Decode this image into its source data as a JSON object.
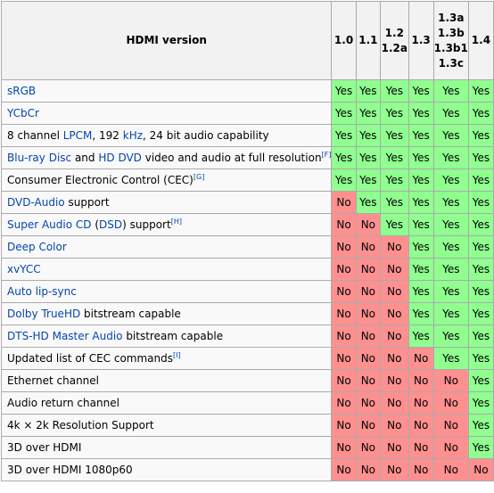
{
  "table": {
    "header_title": "HDMI version",
    "versions": [
      [
        "1.0"
      ],
      [
        "1.1"
      ],
      [
        "1.2",
        "1.2a"
      ],
      [
        "1.3"
      ],
      [
        "1.3a",
        "1.3b",
        "1.3b1",
        "1.3c"
      ],
      [
        "1.4"
      ]
    ],
    "rows": [
      {
        "parts": [
          {
            "t": "sRGB",
            "link": true
          }
        ],
        "values": [
          "Yes",
          "Yes",
          "Yes",
          "Yes",
          "Yes",
          "Yes"
        ]
      },
      {
        "parts": [
          {
            "t": "YCbCr",
            "link": true
          }
        ],
        "values": [
          "Yes",
          "Yes",
          "Yes",
          "Yes",
          "Yes",
          "Yes"
        ]
      },
      {
        "parts": [
          {
            "t": "8 channel ",
            "link": false
          },
          {
            "t": "LPCM",
            "link": true
          },
          {
            "t": ", 192 ",
            "link": false
          },
          {
            "t": "kHz",
            "link": true
          },
          {
            "t": ", 24 bit audio capability",
            "link": false
          }
        ],
        "values": [
          "Yes",
          "Yes",
          "Yes",
          "Yes",
          "Yes",
          "Yes"
        ]
      },
      {
        "parts": [
          {
            "t": "Blu-ray Disc",
            "link": true
          },
          {
            "t": " and ",
            "link": false
          },
          {
            "t": "HD DVD",
            "link": true
          },
          {
            "t": " video and audio at full resolution",
            "link": false
          }
        ],
        "note": "[F]",
        "values": [
          "Yes",
          "Yes",
          "Yes",
          "Yes",
          "Yes",
          "Yes"
        ]
      },
      {
        "parts": [
          {
            "t": "Consumer Electronic Control (CEC)",
            "link": false
          }
        ],
        "note": "[G]",
        "values": [
          "Yes",
          "Yes",
          "Yes",
          "Yes",
          "Yes",
          "Yes"
        ]
      },
      {
        "parts": [
          {
            "t": "DVD-Audio",
            "link": true
          },
          {
            "t": " support",
            "link": false
          }
        ],
        "values": [
          "No",
          "Yes",
          "Yes",
          "Yes",
          "Yes",
          "Yes"
        ]
      },
      {
        "parts": [
          {
            "t": "Super Audio CD",
            "link": true
          },
          {
            "t": " (",
            "link": false
          },
          {
            "t": "DSD",
            "link": true
          },
          {
            "t": ") support",
            "link": false
          }
        ],
        "note": "[H]",
        "values": [
          "No",
          "No",
          "Yes",
          "Yes",
          "Yes",
          "Yes"
        ]
      },
      {
        "parts": [
          {
            "t": "Deep Color",
            "link": true
          }
        ],
        "values": [
          "No",
          "No",
          "No",
          "Yes",
          "Yes",
          "Yes"
        ]
      },
      {
        "parts": [
          {
            "t": "xvYCC",
            "link": true
          }
        ],
        "values": [
          "No",
          "No",
          "No",
          "Yes",
          "Yes",
          "Yes"
        ]
      },
      {
        "parts": [
          {
            "t": "Auto lip-sync",
            "link": true
          }
        ],
        "values": [
          "No",
          "No",
          "No",
          "Yes",
          "Yes",
          "Yes"
        ]
      },
      {
        "parts": [
          {
            "t": "Dolby TrueHD",
            "link": true
          },
          {
            "t": " bitstream capable",
            "link": false
          }
        ],
        "values": [
          "No",
          "No",
          "No",
          "Yes",
          "Yes",
          "Yes"
        ]
      },
      {
        "parts": [
          {
            "t": "DTS-HD Master Audio",
            "link": true
          },
          {
            "t": " bitstream capable",
            "link": false
          }
        ],
        "values": [
          "No",
          "No",
          "No",
          "Yes",
          "Yes",
          "Yes"
        ]
      },
      {
        "parts": [
          {
            "t": "Updated list of CEC commands",
            "link": false
          }
        ],
        "note": "[I]",
        "values": [
          "No",
          "No",
          "No",
          "No",
          "Yes",
          "Yes"
        ]
      },
      {
        "parts": [
          {
            "t": "Ethernet channel",
            "link": false
          }
        ],
        "values": [
          "No",
          "No",
          "No",
          "No",
          "No",
          "Yes"
        ]
      },
      {
        "parts": [
          {
            "t": "Audio return channel",
            "link": false
          }
        ],
        "values": [
          "No",
          "No",
          "No",
          "No",
          "No",
          "Yes"
        ]
      },
      {
        "parts": [
          {
            "t": "4k × 2k Resolution Support",
            "link": false
          }
        ],
        "values": [
          "No",
          "No",
          "No",
          "No",
          "No",
          "Yes"
        ]
      },
      {
        "parts": [
          {
            "t": "3D over HDMI",
            "link": false
          }
        ],
        "values": [
          "No",
          "No",
          "No",
          "No",
          "No",
          "Yes"
        ]
      },
      {
        "parts": [
          {
            "t": "3D over HDMI 1080p60",
            "link": false
          }
        ],
        "values": [
          "No",
          "No",
          "No",
          "No",
          "No",
          "No"
        ]
      }
    ]
  },
  "colors": {
    "yes_bg": "#90ff90",
    "no_bg": "#ff9090",
    "link": "#0645ad",
    "header_bg": "#f2f2f2",
    "border": "#aaaaaa"
  }
}
